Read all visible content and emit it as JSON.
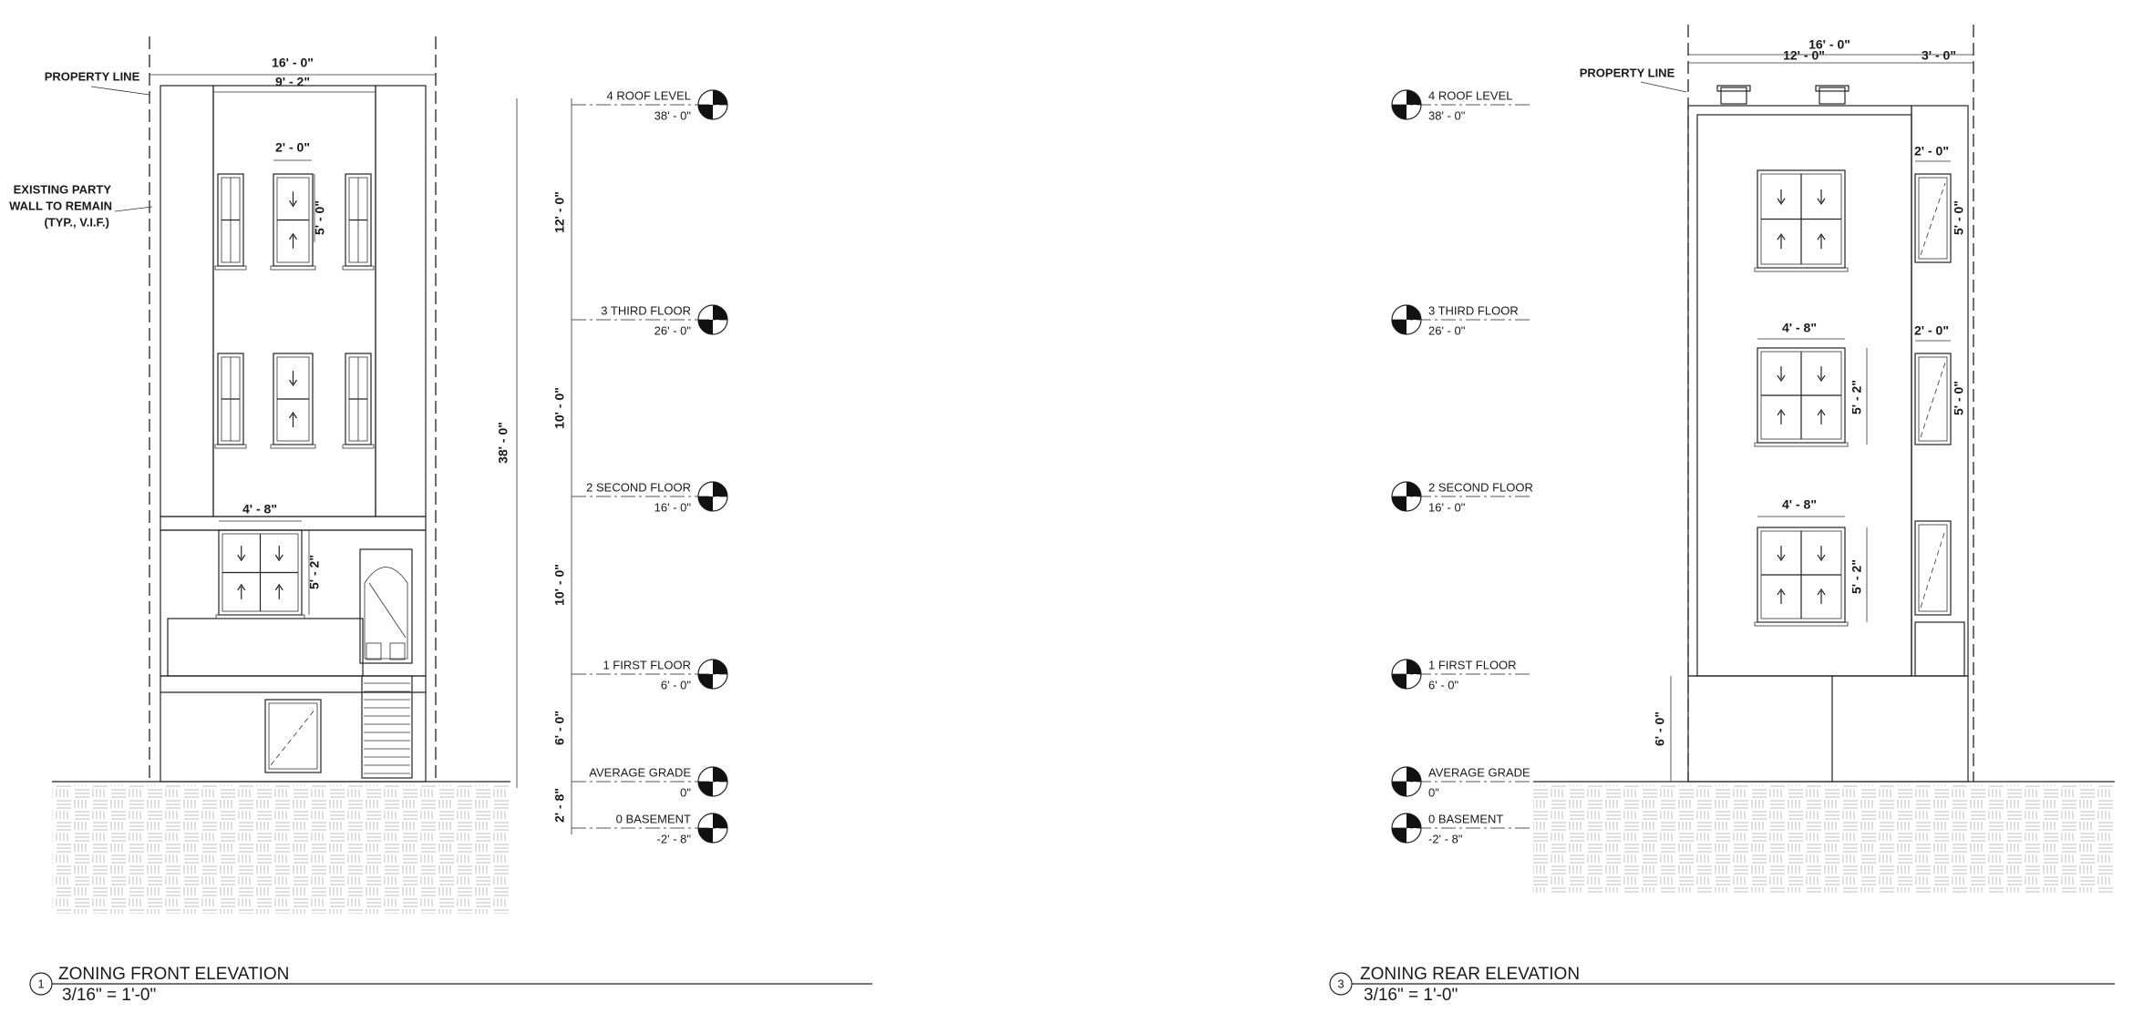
{
  "front": {
    "number": "1",
    "title": "ZONING FRONT ELEVATION",
    "scale": "3/16\" = 1'-0\"",
    "property_line": "PROPERTY LINE",
    "party_wall": [
      "EXISTING PARTY",
      "WALL TO REMAIN",
      "(TYP., V.I.F.)"
    ],
    "dimensions": {
      "overall_width": "16' - 0\"",
      "center_width": "9' - 2\"",
      "window_width": "2' - 0\"",
      "window_height": "5' - 0\"",
      "first_window_width": "4' - 8\"",
      "first_window_height": "5' - 2\"",
      "roof_to_third": "12' - 0\"",
      "third_to_second": "10' - 0\"",
      "second_to_first": "10' - 0\"",
      "first_to_grade": "6' - 0\"",
      "grade_to_basement": "2' - 8\"",
      "overall_height": "38' - 0\""
    },
    "levels": [
      {
        "name": "4 ROOF LEVEL",
        "elevation": "38' - 0\""
      },
      {
        "name": "3 THIRD FLOOR",
        "elevation": "26' - 0\""
      },
      {
        "name": "2 SECOND FLOOR",
        "elevation": "16' - 0\""
      },
      {
        "name": "1 FIRST FLOOR",
        "elevation": "6' - 0\""
      },
      {
        "name": "AVERAGE GRADE",
        "elevation": "0\""
      },
      {
        "name": "0 BASEMENT",
        "elevation": "-2' - 8\""
      }
    ]
  },
  "rear": {
    "number": "3",
    "title": "ZONING REAR ELEVATION",
    "scale": "3/16\" = 1'-0\"",
    "property_line": "PROPERTY LINE",
    "dimensions": {
      "overall_width": "16' - 0\"",
      "main_width": "12' - 0\"",
      "addition_width": "3' - 0\"",
      "addition_window_width_upper": "2' - 0\"",
      "addition_window_height_upper": "5' - 0\"",
      "addition_window_width_middle": "2' - 0\"",
      "addition_window_height_middle": "5' - 0\"",
      "window_width_third": "4' - 8\"",
      "window_height_third": "5' - 2\"",
      "window_width_second": "4' - 8\"",
      "window_height_second": "5' - 2\"",
      "first_to_grade": "6' - 0\""
    },
    "levels": [
      {
        "name": "4 ROOF LEVEL",
        "elevation": "38' - 0\""
      },
      {
        "name": "3 THIRD FLOOR",
        "elevation": "26' - 0\""
      },
      {
        "name": "2 SECOND FLOOR",
        "elevation": "16' - 0\""
      },
      {
        "name": "1 FIRST FLOOR",
        "elevation": "6' - 0\""
      },
      {
        "name": "AVERAGE GRADE",
        "elevation": "0\""
      },
      {
        "name": "0 BASEMENT",
        "elevation": "-2' - 8\""
      }
    ]
  }
}
